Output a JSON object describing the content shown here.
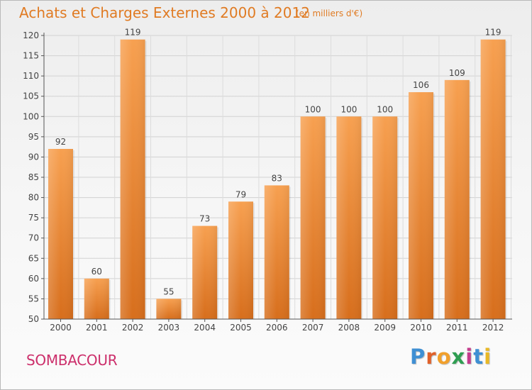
{
  "chart_data": {
    "type": "bar",
    "title": "Achats et Charges Externes 2000 à 2012",
    "unit_label": "(en milliers d'€)",
    "categories": [
      "2000",
      "2001",
      "2002",
      "2003",
      "2004",
      "2005",
      "2006",
      "2007",
      "2008",
      "2009",
      "2010",
      "2011",
      "2012"
    ],
    "values": [
      92,
      60,
      119,
      55,
      73,
      79,
      83,
      100,
      100,
      100,
      106,
      109,
      119
    ],
    "ylim": [
      50,
      120
    ],
    "yticks": [
      50,
      55,
      60,
      65,
      70,
      75,
      80,
      85,
      90,
      95,
      100,
      105,
      110,
      115,
      120
    ],
    "grid": true,
    "bar_color": "#f0923c"
  },
  "footer": {
    "commune": "SOMBACOUR",
    "logo_letters": [
      "P",
      "r",
      "o",
      "x",
      "i",
      "t",
      "i"
    ]
  }
}
